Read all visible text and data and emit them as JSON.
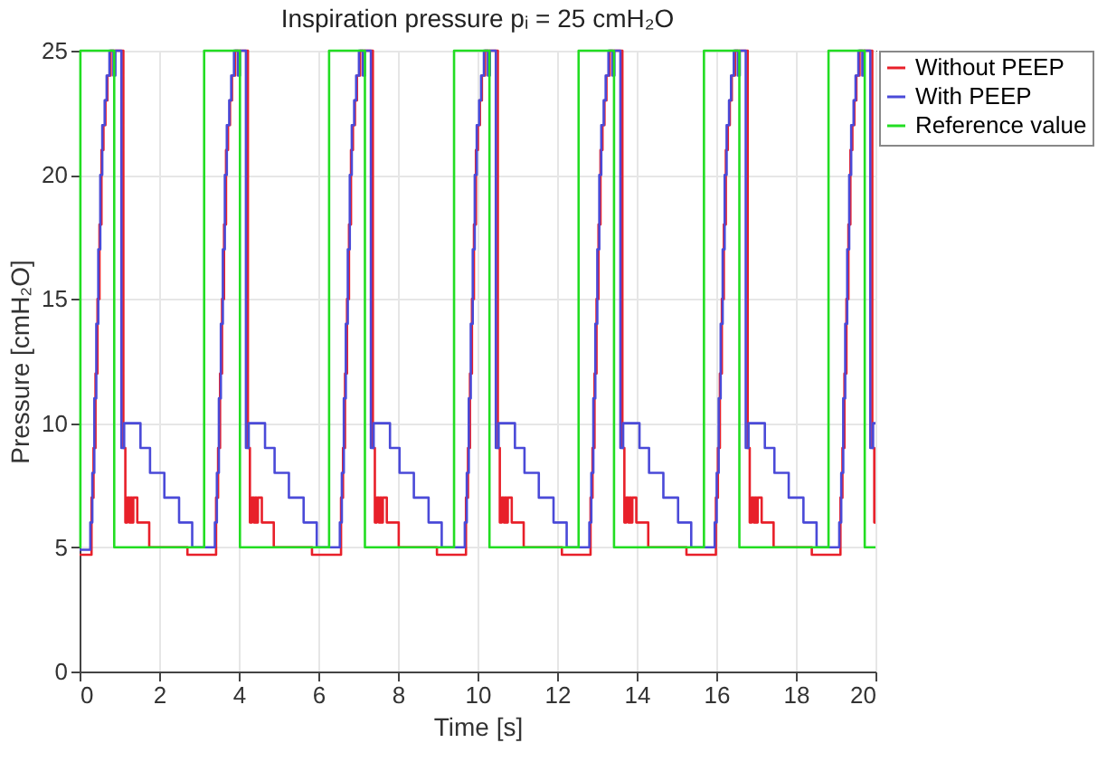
{
  "chart_data": {
    "type": "step",
    "title": "Inspiration pressure pᵢ = 25 cmH₂O",
    "xlabel": "Time [s]",
    "ylabel": "Pressure [cmH₂O]",
    "xlim": [
      0,
      20
    ],
    "xticks": [
      0,
      2,
      4,
      6,
      8,
      10,
      12,
      14,
      16,
      18,
      20
    ],
    "ylim": [
      0,
      25
    ],
    "yticks": [
      0,
      5,
      10,
      15,
      20,
      25
    ],
    "grid": true,
    "legend": "right",
    "line_style": "solid",
    "series": [
      {
        "name": "Without PEEP",
        "color": "#e8202a",
        "x": [
          0,
          0.3,
          0.35,
          0.4,
          0.45,
          0.5,
          0.55,
          0.6,
          0.65,
          0.7,
          0.78,
          1.1,
          1.15,
          1.2,
          1.25,
          1.28,
          1.32,
          1.35,
          1.45,
          1.75,
          2.71,
          3.43,
          3.48,
          3.53,
          3.58,
          3.63,
          3.68,
          3.73,
          3.78,
          3.83,
          3.91,
          4.23,
          4.28,
          4.33,
          4.38,
          4.41,
          4.45,
          4.48,
          4.58,
          4.88,
          5.84,
          6.57,
          6.62,
          6.67,
          6.72,
          6.77,
          6.82,
          6.87,
          6.92,
          6.97,
          7.05,
          7.37,
          7.42,
          7.47,
          7.52,
          7.55,
          7.59,
          7.62,
          7.72,
          8.02,
          8.98,
          9.71,
          9.76,
          9.81,
          9.86,
          9.91,
          9.96,
          10.01,
          10.06,
          10.11,
          10.19,
          10.51,
          10.56,
          10.61,
          10.66,
          10.69,
          10.73,
          10.76,
          10.86,
          11.16,
          12.12,
          12.84,
          12.89,
          12.94,
          12.99,
          13.04,
          13.09,
          13.14,
          13.19,
          13.24,
          13.32,
          13.64,
          13.69,
          13.74,
          13.79,
          13.82,
          13.86,
          13.89,
          13.99,
          14.29,
          15.25,
          15.99,
          16.04,
          16.09,
          16.14,
          16.19,
          16.24,
          16.29,
          16.34,
          16.39,
          16.47,
          16.79,
          16.84,
          16.89,
          16.94,
          16.97,
          17.01,
          17.04,
          17.14,
          17.44,
          18.4,
          19.12,
          19.17,
          19.22,
          19.27,
          19.32,
          19.37,
          19.42,
          19.47,
          19.52,
          19.6,
          19.92,
          19.97,
          20
        ],
        "values": [
          4.7,
          7,
          9,
          12,
          15,
          18,
          21,
          22,
          23,
          24,
          25,
          9,
          6,
          7,
          6,
          7,
          6,
          7,
          6,
          5,
          4.7,
          7,
          9,
          12,
          15,
          18,
          21,
          22,
          23,
          24,
          25,
          9,
          6,
          7,
          6,
          7,
          6,
          7,
          6,
          5,
          4.7,
          7,
          9,
          12,
          15,
          18,
          21,
          22,
          23,
          24,
          25,
          9,
          6,
          7,
          6,
          7,
          6,
          7,
          6,
          5,
          4.7,
          7,
          9,
          12,
          15,
          18,
          21,
          22,
          23,
          24,
          25,
          9,
          6,
          7,
          6,
          7,
          6,
          7,
          6,
          5,
          4.7,
          7,
          9,
          12,
          15,
          18,
          21,
          22,
          23,
          24,
          25,
          9,
          6,
          7,
          6,
          7,
          6,
          7,
          6,
          5,
          4.7,
          7,
          9,
          12,
          15,
          18,
          21,
          22,
          23,
          24,
          25,
          9,
          6,
          7,
          6,
          7,
          6,
          7,
          6,
          5,
          4.7,
          7,
          9,
          12,
          15,
          18,
          21,
          22,
          23,
          24,
          25,
          9,
          6,
          6
        ]
      },
      {
        "name": "With PEEP",
        "color": "#4a4ad8",
        "x": [
          0,
          0.27,
          0.32,
          0.37,
          0.42,
          0.47,
          0.52,
          0.57,
          0.63,
          0.68,
          0.75,
          0.85,
          0.9,
          1.05,
          1.12,
          1.53,
          1.77,
          2.13,
          2.5,
          2.83,
          3.4,
          3.45,
          3.5,
          3.55,
          3.6,
          3.65,
          3.7,
          3.76,
          3.81,
          3.88,
          3.98,
          4.03,
          4.18,
          4.25,
          4.66,
          4.9,
          5.26,
          5.63,
          5.96,
          6.54,
          6.59,
          6.64,
          6.69,
          6.74,
          6.79,
          6.84,
          6.9,
          6.95,
          7.02,
          7.12,
          7.17,
          7.32,
          7.39,
          7.8,
          8.04,
          8.4,
          8.77,
          9.1,
          9.68,
          9.73,
          9.78,
          9.83,
          9.88,
          9.93,
          9.98,
          10.04,
          10.09,
          10.16,
          10.26,
          10.31,
          10.46,
          10.53,
          10.94,
          11.18,
          11.54,
          11.91,
          12.24,
          12.81,
          12.86,
          12.91,
          12.96,
          13.01,
          13.06,
          13.11,
          13.17,
          13.22,
          13.29,
          13.39,
          13.44,
          13.59,
          13.66,
          14.07,
          14.31,
          14.67,
          15.04,
          15.37,
          15.96,
          16.01,
          16.06,
          16.11,
          16.16,
          16.21,
          16.26,
          16.32,
          16.37,
          16.44,
          16.54,
          16.59,
          16.74,
          16.81,
          17.22,
          17.46,
          17.82,
          18.19,
          18.52,
          19.09,
          19.14,
          19.19,
          19.24,
          19.29,
          19.34,
          19.39,
          19.45,
          19.5,
          19.57,
          19.67,
          19.72,
          19.87,
          19.94,
          20
        ],
        "values": [
          4.9,
          6,
          8,
          11,
          14,
          17,
          20,
          22,
          23,
          24,
          25,
          24,
          25,
          9,
          10,
          9,
          8,
          7,
          6,
          5,
          6,
          8,
          11,
          14,
          17,
          20,
          22,
          23,
          24,
          25,
          24,
          25,
          9,
          10,
          9,
          8,
          7,
          6,
          5,
          6,
          8,
          11,
          14,
          17,
          20,
          22,
          23,
          24,
          25,
          24,
          25,
          9,
          10,
          9,
          8,
          7,
          6,
          5,
          6,
          8,
          11,
          14,
          17,
          20,
          22,
          23,
          24,
          25,
          24,
          25,
          9,
          10,
          9,
          8,
          7,
          6,
          5,
          6,
          8,
          11,
          14,
          17,
          20,
          22,
          23,
          24,
          25,
          24,
          25,
          9,
          10,
          9,
          8,
          7,
          6,
          5,
          6,
          8,
          11,
          14,
          17,
          20,
          22,
          23,
          24,
          25,
          24,
          25,
          9,
          10,
          9,
          8,
          7,
          6,
          5,
          6,
          8,
          11,
          14,
          17,
          20,
          22,
          23,
          24,
          25,
          24,
          25,
          9,
          10,
          10
        ]
      },
      {
        "name": "Reference value",
        "color": "#22dd22",
        "x": [
          0,
          0.02,
          0.87,
          3.13,
          4.03,
          6.27,
          7.17,
          9.41,
          10.3,
          12.54,
          13.43,
          15.69,
          16.58,
          18.82,
          19.73,
          20
        ],
        "values": [
          5,
          25,
          5,
          25,
          5,
          25,
          5,
          25,
          5,
          25,
          5,
          25,
          5,
          25,
          5,
          5
        ]
      }
    ]
  }
}
